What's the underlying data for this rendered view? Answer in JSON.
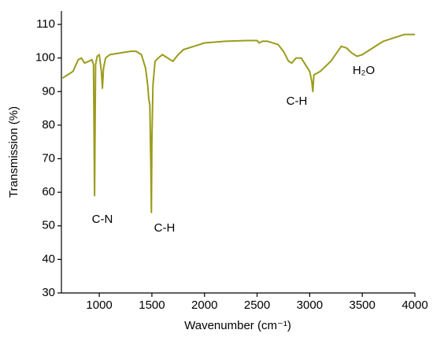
{
  "chart_data": {
    "type": "line",
    "x_label": "Wavenumber (cm⁻¹)",
    "y_label": "Transmission (%)",
    "xlim": [
      640,
      4000
    ],
    "xticks": [
      1000,
      1500,
      2000,
      2500,
      3000,
      3500,
      4000
    ],
    "ylim": [
      30,
      114
    ],
    "yticks": [
      30,
      40,
      50,
      60,
      70,
      80,
      90,
      100,
      110
    ],
    "annotations": [
      "C-N",
      "C-H",
      "C-H",
      "H₂O"
    ],
    "series": [
      {
        "color": "#9b9b1c",
        "x": [
          650,
          700,
          750,
          800,
          830,
          860,
          900,
          930,
          945,
          955,
          965,
          980,
          1000,
          1020,
          1030,
          1040,
          1060,
          1100,
          1200,
          1300,
          1350,
          1400,
          1440,
          1460,
          1470,
          1480,
          1490,
          1495,
          1500,
          1510,
          1530,
          1560,
          1600,
          1650,
          1700,
          1750,
          1800,
          1900,
          2000,
          2200,
          2400,
          2500,
          2520,
          2550,
          2600,
          2700,
          2750,
          2800,
          2830,
          2870,
          2920,
          2960,
          3000,
          3020,
          3030,
          3040,
          3100,
          3200,
          3300,
          3350,
          3400,
          3450,
          3500,
          3600,
          3700,
          3800,
          3900,
          4000
        ],
        "values": [
          94,
          95,
          96,
          99.5,
          100,
          98.5,
          99,
          99.5,
          98,
          59,
          98,
          100.5,
          101,
          96,
          91,
          97,
          100,
          101,
          101.5,
          102,
          102,
          101,
          97,
          92,
          88,
          86,
          68,
          54,
          75,
          92,
          99,
          100,
          101,
          100,
          99,
          101,
          102.5,
          103.5,
          104.5,
          105,
          105.2,
          105.2,
          104.5,
          105,
          105,
          104,
          102,
          99,
          98.5,
          100,
          100,
          98,
          96,
          93,
          90,
          95,
          96,
          99,
          103.5,
          103,
          101.5,
          100.5,
          101,
          103,
          105,
          106,
          107,
          107
        ]
      }
    ]
  }
}
